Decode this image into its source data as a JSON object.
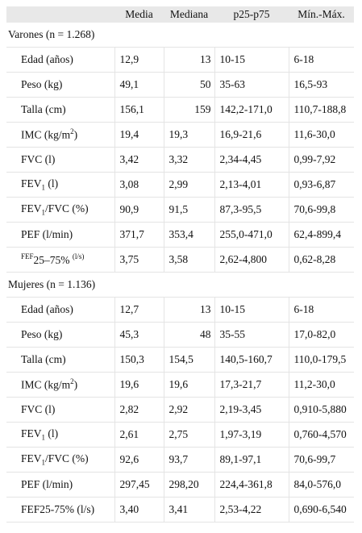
{
  "headers": [
    "",
    "Media",
    "Mediana",
    "p25-p75",
    "Mín.-Máx."
  ],
  "groups": [
    {
      "title": "Varones (n = 1.268)",
      "rows": [
        {
          "label": "Edad (años)",
          "media": "12,9",
          "mediana": "13",
          "p": "10-15",
          "minmax": "6-18"
        },
        {
          "label": "Peso (kg)",
          "media": "49,1",
          "mediana": "50",
          "p": "35-63",
          "minmax": "16,5-93"
        },
        {
          "label": "Talla (cm)",
          "media": "156,1",
          "mediana": "159",
          "p": "142,2-171,0",
          "minmax": "110,7-188,8"
        },
        {
          "label": "IMC (kg/m",
          "sup": "2",
          "tail": ")",
          "media": "19,4",
          "mediana": "19,3",
          "p": "16,9-21,6",
          "minmax": "11,6-30,0"
        },
        {
          "label": "FVC (l)",
          "media": "3,42",
          "mediana": "3,32",
          "p": "2,34-4,45",
          "minmax": "0,99-7,92"
        },
        {
          "label": "FEV",
          "sub": "1",
          "tail": " (l)",
          "media": "3,08",
          "mediana": "2,99",
          "p": "2,13-4,01",
          "minmax": "0,93-6,87"
        },
        {
          "label": "FEV",
          "sub": "1",
          "tail": "/FVC (%)",
          "media": "90,9",
          "mediana": "91,5",
          "p": "87,3-95,5",
          "minmax": "70,6-99,8"
        },
        {
          "label": "PEF (l/min)",
          "media": "371,7",
          "mediana": "353,4",
          "p": "255,0-471,0",
          "minmax": "62,4-899,4"
        },
        {
          "label": "FEF",
          "fefsup": "FEF",
          "mid": "25–75%",
          "fefsup2": "(l/s)",
          "media": "3,75",
          "mediana": "3,58",
          "p": "2,62-4,800",
          "minmax": "0,62-8,28"
        }
      ]
    },
    {
      "title": "Mujeres (n = 1.136)",
      "rows": [
        {
          "label": "Edad (años)",
          "media": "12,7",
          "mediana": "13",
          "p": "10-15",
          "minmax": "6-18"
        },
        {
          "label": "Peso (kg)",
          "media": "45,3",
          "mediana": "48",
          "p": "35-55",
          "minmax": "17,0-82,0"
        },
        {
          "label": "Talla (cm)",
          "media": "150,3",
          "mediana": "154,5",
          "p": "140,5-160,7",
          "minmax": "110,0-179,5"
        },
        {
          "label": "IMC (kg/m",
          "sup": "2",
          "tail": ")",
          "media": "19,6",
          "mediana": "19,6",
          "p": "17,3-21,7",
          "minmax": "11,2-30,0"
        },
        {
          "label": "FVC (l)",
          "media": "2,82",
          "mediana": "2,92",
          "p": "2,19-3,45",
          "minmax": "0,910-5,880"
        },
        {
          "label": "FEV",
          "sub": "1",
          "tail": " (l)",
          "media": "2,61",
          "mediana": "2,75",
          "p": "1,97-3,19",
          "minmax": "0,760-4,570"
        },
        {
          "label": "FEV",
          "sub": "1",
          "tail": "/FVC (%)",
          "media": "92,6",
          "mediana": "93,7",
          "p": "89,1-97,1",
          "minmax": "70,6-99,7"
        },
        {
          "label": "PEF (l/min)",
          "media": "297,45",
          "mediana": "298,20",
          "p": "224,4-361,8",
          "minmax": "84,0-576,0"
        },
        {
          "label": "FEF25-75% (l/s)",
          "media": "3,40",
          "mediana": "3,41",
          "p": "2,53-4,22",
          "minmax": "0,690-6,540"
        }
      ]
    }
  ]
}
